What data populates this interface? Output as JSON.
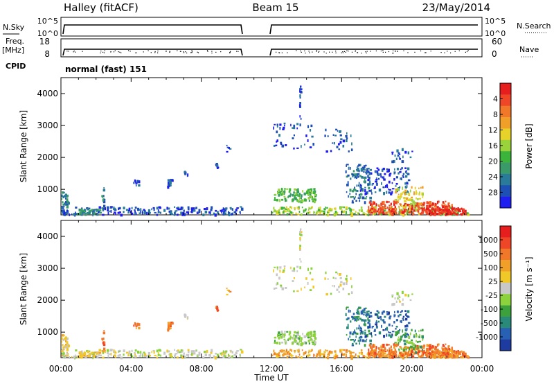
{
  "header": {
    "station": "Halley (fitACF)",
    "beam": "Beam 15",
    "date": "23/May/2014"
  },
  "top_panels": {
    "nsky_label": "N.Sky",
    "nsearch_label": "N.Search",
    "nsky_ticks": [
      "10^5",
      "10^0"
    ],
    "nsearch_ticks": [
      "10^5",
      "10^0"
    ],
    "freq_label": "Freq.",
    "freq_unit": "[MHz]",
    "freq_ticks": [
      "18",
      "8"
    ],
    "nave_label": "Nave",
    "nave_ticks": [
      "60",
      "0"
    ],
    "cpid_label": "CPID",
    "cpid_value": "normal (fast) 151"
  },
  "chart_data": [
    {
      "type": "heatmap",
      "name": "power",
      "ylabel": "Slant Range [km]",
      "xlabel": "Time UT",
      "x_ticks": [
        "00:00",
        "04:00",
        "08:00",
        "12:00",
        "16:00",
        "20:00",
        "00:00"
      ],
      "x_hours": [
        0,
        4,
        8,
        12,
        16,
        20,
        24
      ],
      "y_ticks": [
        "1000",
        "2000",
        "3000",
        "4000"
      ],
      "y_values": [
        1000,
        2000,
        3000,
        4000
      ],
      "ylim": [
        200,
        4500
      ],
      "xlim": [
        0,
        24
      ],
      "colorbar_label": "Power [dB]",
      "colorbar_ticks": [
        "4",
        "8",
        "12",
        "16",
        "20",
        "24",
        "28"
      ],
      "colorbar_colors": [
        "#1e1ef0",
        "#1e4fb4",
        "#2a7a9a",
        "#3a9a6a",
        "#3cb43c",
        "#9ad23c",
        "#e6d228",
        "#f0a028",
        "#f07828",
        "#f04628",
        "#e61e1e"
      ]
    },
    {
      "type": "heatmap",
      "name": "velocity",
      "ylabel": "Slant Range [km]",
      "xlabel": "Time UT",
      "x_ticks": [
        "00:00",
        "04:00",
        "08:00",
        "12:00",
        "16:00",
        "20:00",
        "00:00"
      ],
      "x_hours": [
        0,
        4,
        8,
        12,
        16,
        20,
        24
      ],
      "y_ticks": [
        "1000",
        "2000",
        "3000",
        "4000"
      ],
      "y_values": [
        1000,
        2000,
        3000,
        4000
      ],
      "ylim": [
        200,
        4500
      ],
      "xlim": [
        0,
        24
      ],
      "colorbar_label": "Velocity [m s⁻¹]",
      "colorbar_ticks": [
        "1000",
        "500",
        "100",
        "25",
        "-25",
        "-100",
        "-500",
        "-1000"
      ],
      "colorbar_colors": [
        "#1e3ca0",
        "#2860b4",
        "#2a8a7a",
        "#3ca03c",
        "#8cd23c",
        "#c8c8c8",
        "#f0c828",
        "#f0a028",
        "#f07828",
        "#f04628",
        "#e61e1e"
      ]
    }
  ],
  "scatter_regions": [
    {
      "t0": 0.0,
      "t1": 0.4,
      "r0": 250,
      "r1": 950,
      "n": 40,
      "p": 2,
      "v": 6
    },
    {
      "t0": 0.0,
      "t1": 10.3,
      "r0": 230,
      "r1": 480,
      "n": 200,
      "p": 1,
      "v": 5
    },
    {
      "t0": 0.9,
      "t1": 2.2,
      "r0": 250,
      "r1": 420,
      "n": 40,
      "p": 3,
      "v": 6
    },
    {
      "t0": 2.3,
      "t1": 2.45,
      "r0": 350,
      "r1": 1100,
      "n": 14,
      "p": 2,
      "v": 8
    },
    {
      "t0": 4.1,
      "t1": 4.4,
      "r0": 1150,
      "r1": 1320,
      "n": 10,
      "p": 1,
      "v": 8
    },
    {
      "t0": 6.05,
      "t1": 6.35,
      "r0": 1100,
      "r1": 1330,
      "n": 16,
      "p": 1,
      "v": 8
    },
    {
      "t0": 7.0,
      "t1": 7.2,
      "r0": 1450,
      "r1": 1600,
      "n": 6,
      "p": 1,
      "v": 5
    },
    {
      "t0": 8.75,
      "t1": 8.9,
      "r0": 1700,
      "r1": 1900,
      "n": 6,
      "p": 1,
      "v": 8
    },
    {
      "t0": 9.4,
      "t1": 9.6,
      "r0": 2200,
      "r1": 2400,
      "n": 5,
      "p": 1,
      "v": 7
    },
    {
      "t0": 12.1,
      "t1": 14.5,
      "r0": 650,
      "r1": 1050,
      "n": 110,
      "p": 4,
      "v": 4
    },
    {
      "t0": 12.0,
      "t1": 14.4,
      "r0": 2300,
      "r1": 3100,
      "n": 40,
      "p": 1,
      "v": 5
    },
    {
      "t0": 13.55,
      "t1": 13.65,
      "r0": 3000,
      "r1": 4300,
      "n": 16,
      "p": 1,
      "v": 5
    },
    {
      "t0": 12.0,
      "t1": 23.2,
      "r0": 230,
      "r1": 480,
      "n": 260,
      "p": 5,
      "v": 7
    },
    {
      "t0": 15.0,
      "t1": 16.6,
      "r0": 2200,
      "r1": 2900,
      "n": 30,
      "p": 1,
      "v": 5
    },
    {
      "t0": 16.2,
      "t1": 17.6,
      "r0": 600,
      "r1": 1800,
      "n": 90,
      "p": 2,
      "v": 2
    },
    {
      "t0": 17.0,
      "t1": 19.8,
      "r0": 900,
      "r1": 1700,
      "n": 120,
      "p": 1,
      "v": 1
    },
    {
      "t0": 17.5,
      "t1": 22.3,
      "r0": 240,
      "r1": 650,
      "n": 240,
      "p": 9,
      "v": 8
    },
    {
      "t0": 18.8,
      "t1": 20.0,
      "r0": 1900,
      "r1": 2300,
      "n": 20,
      "p": 1,
      "v": 5
    },
    {
      "t0": 19.0,
      "t1": 20.6,
      "r0": 400,
      "r1": 1100,
      "n": 70,
      "p": 6,
      "v": 3
    },
    {
      "t0": 20.5,
      "t1": 23.0,
      "r0": 240,
      "r1": 440,
      "n": 110,
      "p": 10,
      "v": 8
    }
  ]
}
